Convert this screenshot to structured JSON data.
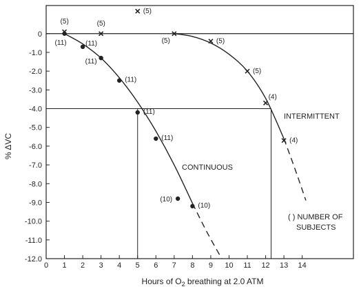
{
  "chart_data": {
    "type": "scatter",
    "xlabel_main": "Hours of O",
    "xlabel_sub": "2",
    "xlabel_rest": " breathing at 2.0 ATM",
    "ylabel": "% ΔVC",
    "xlim": [
      0,
      16.8
    ],
    "ylim": [
      -12,
      1.5
    ],
    "x_ticks": [
      0,
      1,
      2,
      3,
      4,
      5,
      6,
      7,
      8,
      9,
      10,
      11,
      12,
      13,
      14
    ],
    "y_ticks": [
      0,
      -1.0,
      -2.0,
      -3.0,
      -4.0,
      -5.0,
      -6.0,
      -7.0,
      -8.0,
      -9.0,
      -10.0,
      -11.0,
      -12.0
    ],
    "y_tick_labels": [
      "0",
      "-1.0",
      "-2.0",
      "-3.0",
      "-4.0",
      "-5.0",
      "-6.0",
      "-7.0",
      "-8.0",
      "-9.0",
      "-10.0",
      "-11.0",
      "-12.0"
    ],
    "series": [
      {
        "name": "CONTINUOUS",
        "marker": "dot",
        "points": [
          {
            "x": 1,
            "y": 0,
            "n": "(11)"
          },
          {
            "x": 2,
            "y": -0.7,
            "n": "(11)"
          },
          {
            "x": 3,
            "y": -1.3,
            "n": "(11)"
          },
          {
            "x": 4,
            "y": -2.5,
            "n": "(11)"
          },
          {
            "x": 5,
            "y": -4.2,
            "n": "(11)"
          },
          {
            "x": 6,
            "y": -5.6,
            "n": "(11)"
          },
          {
            "x": 7.2,
            "y": -8.8,
            "n": "(10)"
          },
          {
            "x": 8,
            "y": -9.2,
            "n": "(10)"
          }
        ],
        "curve_solid": [
          [
            1,
            0
          ],
          [
            2,
            -0.55
          ],
          [
            3,
            -1.3
          ],
          [
            4,
            -2.35
          ],
          [
            5,
            -3.65
          ],
          [
            6,
            -5.2
          ],
          [
            7,
            -7.0
          ],
          [
            8,
            -9.05
          ]
        ],
        "curve_dashed": [
          [
            8,
            -9.05
          ],
          [
            8.8,
            -10.6
          ],
          [
            9.6,
            -12.0
          ]
        ]
      },
      {
        "name": "INTERMITTENT",
        "marker": "x",
        "points": [
          {
            "x": 1,
            "y": 0.1,
            "n": "(5)"
          },
          {
            "x": 3,
            "y": 0,
            "n": "(5)"
          },
          {
            "x": 5,
            "y": 1.2,
            "n": "(5)"
          },
          {
            "x": 7,
            "y": 0,
            "n": "(5)"
          },
          {
            "x": 9,
            "y": -0.4,
            "n": "(5)"
          },
          {
            "x": 11,
            "y": -2.0,
            "n": "(5)"
          },
          {
            "x": 12,
            "y": -3.7,
            "n": "(4)"
          },
          {
            "x": 13,
            "y": -5.7,
            "n": "(4)"
          }
        ],
        "curve_solid": [
          [
            7,
            0
          ],
          [
            8,
            -0.15
          ],
          [
            9,
            -0.5
          ],
          [
            10,
            -1.1
          ],
          [
            11,
            -2.0
          ],
          [
            12,
            -3.45
          ],
          [
            13,
            -5.6
          ]
        ],
        "curve_dashed": [
          [
            13,
            -5.6
          ],
          [
            13.6,
            -7.2
          ],
          [
            14.2,
            -8.9
          ]
        ]
      }
    ],
    "reference_line_y": -4.0,
    "reference_drop_x": [
      5.0,
      12.3
    ],
    "annotations": {
      "continuous": "CONTINUOUS",
      "intermittent": "INTERMITTENT",
      "legend_line1": "( ) NUMBER OF",
      "legend_line2": "SUBJECTS"
    },
    "grid": false
  }
}
